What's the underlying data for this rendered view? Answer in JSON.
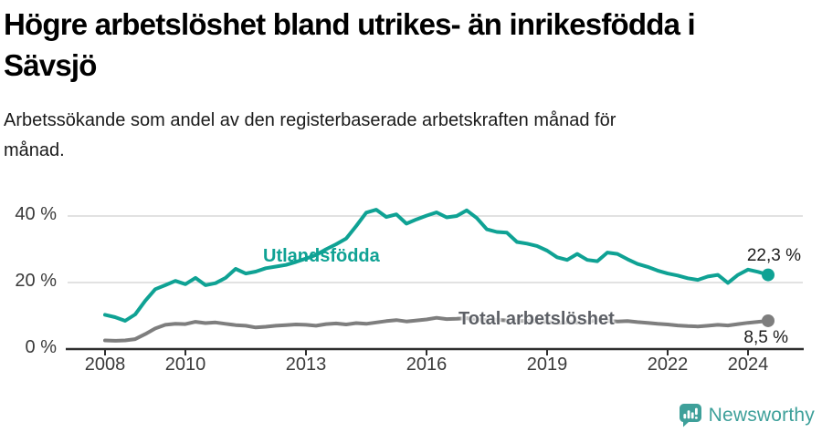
{
  "header": {
    "title_lines": [
      "Högre arbetslöshet bland utrikes- än inrikesfödda i",
      "Sävsjö"
    ],
    "subtitle_lines": [
      "Arbetssökande som andel av den registerbaserade arbetskraften månad för",
      "månad."
    ]
  },
  "chart_data": {
    "type": "line",
    "title": "Högre arbetslöshet bland utrikes- än inrikesfödda i Sävsjö",
    "subtitle": "Arbetssökande som andel av den registerbaserade arbetskraften månad för månad.",
    "y_unit": "percent",
    "ylim": [
      0,
      44
    ],
    "grid": "horizontal",
    "legend": "inline-labels",
    "y_ticks": [
      {
        "value": 0,
        "label": "0 %"
      },
      {
        "value": 20,
        "label": "20 %"
      },
      {
        "value": 40,
        "label": "40 %"
      }
    ],
    "x_ticks": [
      {
        "value": 2008,
        "label": "2008"
      },
      {
        "value": 2010,
        "label": "2010"
      },
      {
        "value": 2013,
        "label": "2013"
      },
      {
        "value": 2016,
        "label": "2016"
      },
      {
        "value": 2019,
        "label": "2019"
      },
      {
        "value": 2022,
        "label": "2022"
      },
      {
        "value": 2024,
        "label": "2024"
      }
    ],
    "series": [
      {
        "name": "Utlandsfödda",
        "color": "#0fa294",
        "label_color": "#0fa294",
        "end_label": "22,3 %",
        "end_value": 22.3,
        "x_start": 2008.0,
        "x_step": 0.25,
        "values": [
          10.3,
          9.6,
          8.5,
          10.4,
          14.5,
          18.0,
          19.2,
          20.5,
          19.5,
          21.4,
          19.2,
          19.8,
          21.4,
          24.1,
          22.7,
          23.3,
          24.3,
          24.8,
          25.3,
          26.2,
          27.2,
          28.3,
          30.0,
          31.5,
          33.2,
          37.0,
          41.0,
          41.9,
          39.7,
          40.5,
          37.7,
          39.0,
          40.1,
          41.1,
          39.6,
          40.0,
          41.7,
          39.4,
          36.0,
          35.2,
          35.0,
          32.2,
          31.7,
          31.0,
          29.6,
          27.6,
          26.8,
          28.6,
          26.8,
          26.4,
          29.0,
          28.6,
          27.0,
          25.6,
          24.7,
          23.6,
          22.7,
          22.1,
          21.3,
          20.8,
          21.8,
          22.3,
          19.9,
          22.3,
          23.9,
          23.2,
          22.3
        ]
      },
      {
        "name": "Total arbetslöshet",
        "color": "#7e7e7e",
        "label_color": "#5d6066",
        "end_label": "8,5 %",
        "end_value": 8.5,
        "x_start": 2008.0,
        "x_step": 0.25,
        "values": [
          2.6,
          2.5,
          2.6,
          3.0,
          4.5,
          6.2,
          7.3,
          7.6,
          7.5,
          8.2,
          7.8,
          8.0,
          7.6,
          7.2,
          7.0,
          6.5,
          6.7,
          7.0,
          7.2,
          7.4,
          7.3,
          7.0,
          7.5,
          7.7,
          7.4,
          7.8,
          7.6,
          8.0,
          8.4,
          8.7,
          8.3,
          8.6,
          8.9,
          9.4,
          9.0,
          9.1,
          9.3,
          8.9,
          8.7,
          8.8,
          8.6,
          8.4,
          8.5,
          8.3,
          8.1,
          7.9,
          8.1,
          8.0,
          8.1,
          8.7,
          8.5,
          8.3,
          8.4,
          8.1,
          7.9,
          7.6,
          7.4,
          7.1,
          6.9,
          6.8,
          7.0,
          7.3,
          7.1,
          7.5,
          7.9,
          8.2,
          8.5
        ]
      }
    ]
  },
  "branding": {
    "logo_text": "Newsworthy",
    "color": "#3ea09a"
  }
}
